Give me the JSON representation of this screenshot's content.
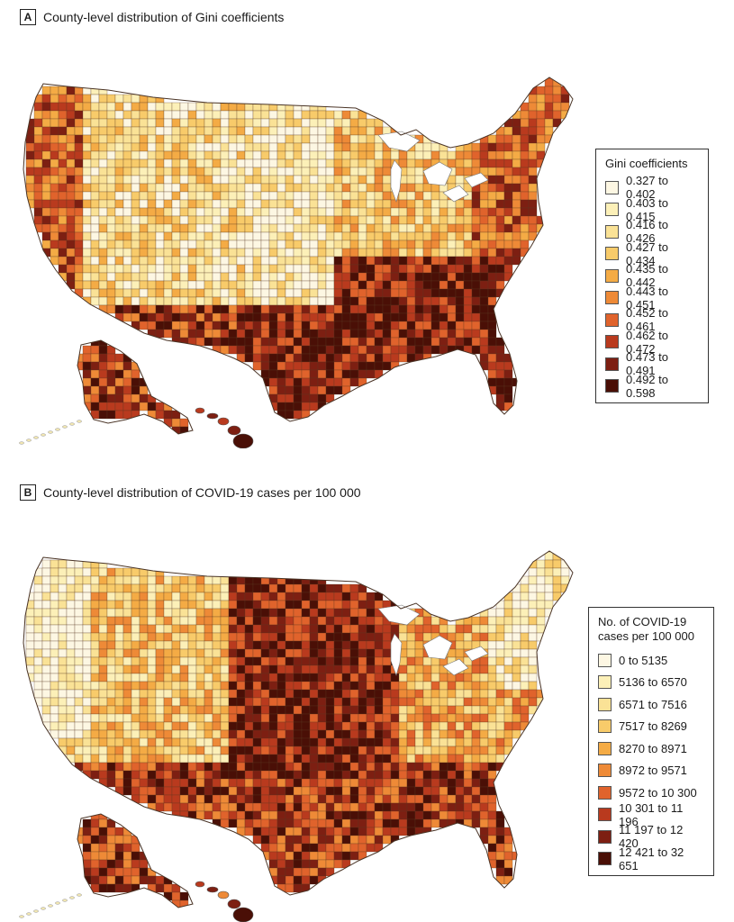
{
  "panel_a": {
    "letter": "A",
    "title": "County-level distribution of Gini coefficients",
    "legend": {
      "title": "Gini coefficients",
      "items": [
        {
          "label": "0.327 to 0.402",
          "color": "#fdf7e3"
        },
        {
          "label": "0.403 to 0.415",
          "color": "#fcf0b8"
        },
        {
          "label": "0.416 to 0.426",
          "color": "#fae296"
        },
        {
          "label": "0.427 to 0.434",
          "color": "#f8cb6a"
        },
        {
          "label": "0.435 to 0.442",
          "color": "#f4ab45"
        },
        {
          "label": "0.443 to 0.451",
          "color": "#ee8a37"
        },
        {
          "label": "0.452 to 0.461",
          "color": "#e0632c"
        },
        {
          "label": "0.462 to 0.472",
          "color": "#b93a1e"
        },
        {
          "label": "0.473 to 0.491",
          "color": "#7d1f12"
        },
        {
          "label": "0.492 to 0.598",
          "color": "#4a0f06"
        }
      ]
    }
  },
  "panel_b": {
    "letter": "B",
    "title": "County-level distribution of COVID-19 cases per 100 000",
    "legend": {
      "title": "No. of COVID-19 cases per 100 000",
      "items": [
        {
          "label": "0 to 5135",
          "color": "#fdf7e3"
        },
        {
          "label": "5136 to 6570",
          "color": "#fcf0b8"
        },
        {
          "label": "6571 to 7516",
          "color": "#fae296"
        },
        {
          "label": "7517 to 8269",
          "color": "#f8cb6a"
        },
        {
          "label": "8270 to 8971",
          "color": "#f4ab45"
        },
        {
          "label": "8972 to 9571",
          "color": "#ee8a37"
        },
        {
          "label": "9572 to 10 300",
          "color": "#e0632c"
        },
        {
          "label": "10 301 to 11 196",
          "color": "#b93a1e"
        },
        {
          "label": "11 197 to 12 420",
          "color": "#7d1f12"
        },
        {
          "label": "12 421 to 32 651",
          "color": "#4a0f06"
        }
      ]
    }
  }
}
